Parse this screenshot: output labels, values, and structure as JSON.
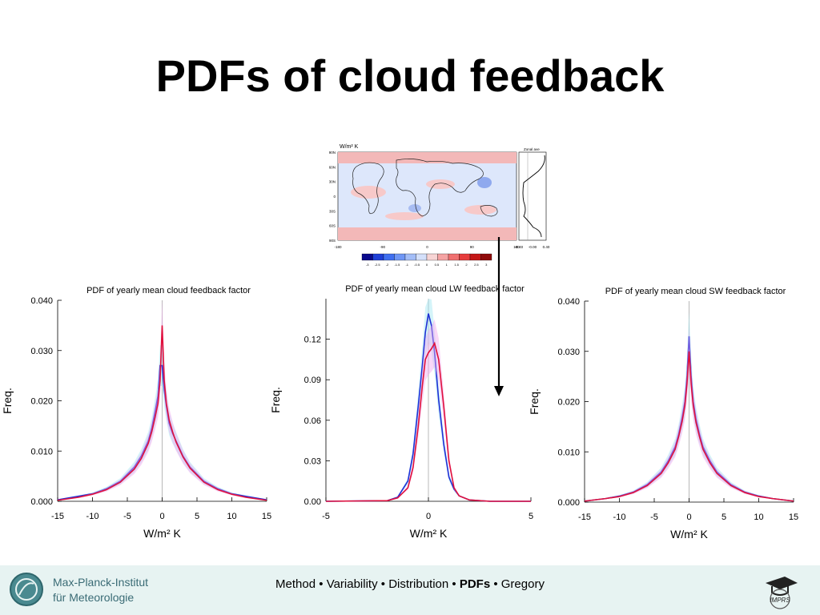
{
  "slide": {
    "title": "PDFs of cloud feedback"
  },
  "map": {
    "units_label": "W/m² K",
    "zonal_label": "Zonal ave",
    "lat_ticks": [
      "90N",
      "60N",
      "30N",
      "0",
      "30S",
      "60S",
      "90S"
    ],
    "lon_ticks": [
      "-180",
      "-90",
      "0",
      "90",
      "180"
    ],
    "zonal_ticks": [
      "-0.40",
      "-0.00",
      "0.40"
    ],
    "colorbar_labels": [
      "-3",
      "-2.5",
      "-2",
      "-1.5",
      "-1",
      "-0.5",
      "0",
      "0.5",
      "1",
      "1.5",
      "2",
      "2.5",
      "3"
    ],
    "colorbar_colors": [
      "#0a0a8c",
      "#1f3fd6",
      "#3f6ff0",
      "#6f96f5",
      "#a3bdf7",
      "#d4e0fa",
      "#f7d4d4",
      "#f5a3a3",
      "#f07070",
      "#e63c3c",
      "#c41616",
      "#8f0a0a"
    ]
  },
  "chart_data": [
    {
      "type": "line",
      "title": "PDF of yearly mean cloud feedback factor",
      "xlabel": "W/m² K",
      "ylabel": "Freq.",
      "xlim": [
        -15,
        15
      ],
      "ylim": [
        0,
        0.04
      ],
      "xticks": [
        "-15",
        "-10",
        "-5",
        "0",
        "5",
        "10",
        "15"
      ],
      "yticks": [
        "0.000",
        "0.010",
        "0.020",
        "0.030",
        "0.040"
      ],
      "series": [
        {
          "color": "#1f2fd6",
          "x": [
            -15,
            -12,
            -10,
            -8,
            -6,
            -4,
            -3,
            -2,
            -1.5,
            -1,
            -0.6,
            -0.3,
            0,
            0.3,
            0.6,
            1,
            1.5,
            2,
            3,
            4,
            6,
            8,
            10,
            12,
            15
          ],
          "y": [
            0.0003,
            0.001,
            0.0015,
            0.0025,
            0.004,
            0.0068,
            0.009,
            0.012,
            0.0145,
            0.018,
            0.021,
            0.027,
            0.027,
            0.022,
            0.019,
            0.0155,
            0.0135,
            0.012,
            0.009,
            0.0068,
            0.004,
            0.0025,
            0.0015,
            0.001,
            0.0003
          ]
        },
        {
          "color": "#e0103c",
          "x": [
            -15,
            -12,
            -10,
            -8,
            -6,
            -4,
            -3,
            -2,
            -1.5,
            -1,
            -0.6,
            -0.3,
            0,
            0.3,
            0.6,
            1,
            1.5,
            2,
            3,
            4,
            6,
            8,
            10,
            12,
            15
          ],
          "y": [
            0.0002,
            0.0008,
            0.0014,
            0.0023,
            0.0038,
            0.0064,
            0.0085,
            0.0115,
            0.0138,
            0.0168,
            0.0195,
            0.024,
            0.035,
            0.024,
            0.0195,
            0.0162,
            0.0138,
            0.0118,
            0.0088,
            0.0066,
            0.0038,
            0.0023,
            0.0014,
            0.0008,
            0.0002
          ]
        }
      ]
    },
    {
      "type": "line",
      "title": "PDF of yearly mean cloud LW feedback factor",
      "xlabel": "W/m² K",
      "ylabel": "Freq.",
      "xlim": [
        -5,
        5
      ],
      "ylim": [
        0,
        0.15
      ],
      "xticks": [
        "-5",
        "0",
        "5"
      ],
      "yticks": [
        "0.00",
        "0.03",
        "0.06",
        "0.09",
        "0.12"
      ],
      "series": [
        {
          "color": "#1f2fd6",
          "x": [
            -5,
            -2,
            -1.5,
            -1,
            -0.75,
            -0.5,
            -0.3,
            -0.15,
            0,
            0.15,
            0.3,
            0.5,
            0.75,
            1,
            1.25,
            1.5,
            2,
            3,
            5
          ],
          "y": [
            0,
            0.0005,
            0.003,
            0.015,
            0.035,
            0.07,
            0.1,
            0.125,
            0.139,
            0.13,
            0.11,
            0.075,
            0.042,
            0.018,
            0.009,
            0.004,
            0.001,
            0,
            0
          ]
        },
        {
          "color": "#e0103c",
          "x": [
            -5,
            -2,
            -1.5,
            -1,
            -0.75,
            -0.5,
            -0.3,
            -0.15,
            0,
            0.15,
            0.3,
            0.5,
            0.75,
            1,
            1.25,
            1.5,
            2,
            3,
            5
          ],
          "y": [
            0,
            0.0005,
            0.0025,
            0.01,
            0.025,
            0.055,
            0.085,
            0.105,
            0.11,
            0.113,
            0.117,
            0.105,
            0.07,
            0.03,
            0.01,
            0.004,
            0.001,
            0,
            0
          ]
        }
      ]
    },
    {
      "type": "line",
      "title": "PDF of yearly mean cloud SW feedback factor",
      "xlabel": "W/m² K",
      "ylabel": "Freq.",
      "xlim": [
        -15,
        15
      ],
      "ylim": [
        0,
        0.04
      ],
      "xticks": [
        "-15",
        "-10",
        "-5",
        "0",
        "5",
        "10",
        "15"
      ],
      "yticks": [
        "0.000",
        "0.010",
        "0.020",
        "0.030",
        "0.040"
      ],
      "series": [
        {
          "color": "#1f2fd6",
          "x": [
            -15,
            -12,
            -10,
            -8,
            -6,
            -4,
            -3,
            -2,
            -1.5,
            -1,
            -0.6,
            -0.3,
            0,
            0.3,
            0.6,
            1,
            1.5,
            2,
            3,
            4,
            6,
            8,
            10,
            12,
            15
          ],
          "y": [
            0.0002,
            0.0007,
            0.0012,
            0.002,
            0.0035,
            0.006,
            0.0082,
            0.011,
            0.0135,
            0.0168,
            0.02,
            0.025,
            0.033,
            0.025,
            0.02,
            0.0165,
            0.0135,
            0.011,
            0.0082,
            0.006,
            0.0035,
            0.002,
            0.0012,
            0.0007,
            0.0002
          ]
        },
        {
          "color": "#e0103c",
          "x": [
            -15,
            -12,
            -10,
            -8,
            -6,
            -4,
            -3,
            -2,
            -1.5,
            -1,
            -0.6,
            -0.3,
            0,
            0.3,
            0.6,
            1,
            1.5,
            2,
            3,
            4,
            6,
            8,
            10,
            12,
            15
          ],
          "y": [
            0.0002,
            0.0007,
            0.0011,
            0.0019,
            0.0033,
            0.0057,
            0.0078,
            0.0105,
            0.013,
            0.016,
            0.0192,
            0.0235,
            0.03,
            0.0235,
            0.0192,
            0.0158,
            0.013,
            0.0105,
            0.0078,
            0.0057,
            0.0033,
            0.0019,
            0.0011,
            0.0007,
            0.0002
          ]
        }
      ]
    }
  ],
  "footer": {
    "institute_line1": "Max-Planck-Institut",
    "institute_line2": "für Meteorologie",
    "nav_items": [
      "Method",
      "Variability",
      "Distribution",
      "PDFs",
      "Gregory"
    ],
    "nav_current": "PDFs",
    "nav_separator": " • ",
    "imprs_label": "IMPRS"
  }
}
